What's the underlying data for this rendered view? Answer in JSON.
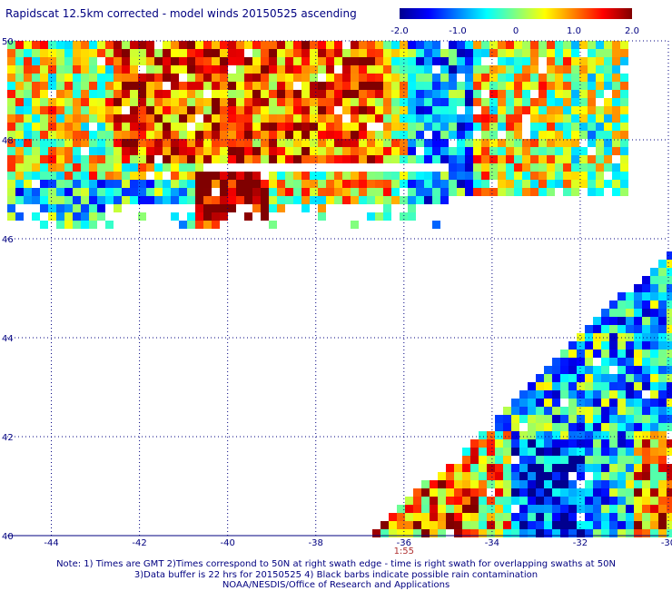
{
  "title": "Rapidscat 12.5km corrected - model winds 20150525 ascending",
  "colorbar": {
    "ticks": [
      "-2.0",
      "-1.0",
      "0",
      "1.0",
      "2.0"
    ],
    "range": [
      -2.0,
      2.0
    ],
    "colors": [
      "#00008f",
      "#0000ff",
      "#0080ff",
      "#00ffff",
      "#80ff80",
      "#ffff00",
      "#ff8000",
      "#ff0000",
      "#800000"
    ]
  },
  "map": {
    "lon_range": [
      -45,
      -30
    ],
    "lat_range": [
      40,
      50
    ],
    "lon_ticks": [
      "-44",
      "-42",
      "-40",
      "-38",
      "-36",
      "-34",
      "-32",
      "-30"
    ],
    "lat_ticks": [
      "50",
      "48",
      "46",
      "44",
      "42",
      "40"
    ],
    "gridlines": "dotted",
    "time_label": "1:55"
  },
  "notes": {
    "line1": "Note: 1) Times are GMT 2)Times correspond to 50N at right swath edge - time is right swath for overlapping swaths at 50N",
    "line2": "3)Data buffer is 22 hrs for 20150525 4) Black barbs indicate possible rain contamination",
    "line3": "NOAA/NESDIS/Office of Research and Applications"
  }
}
